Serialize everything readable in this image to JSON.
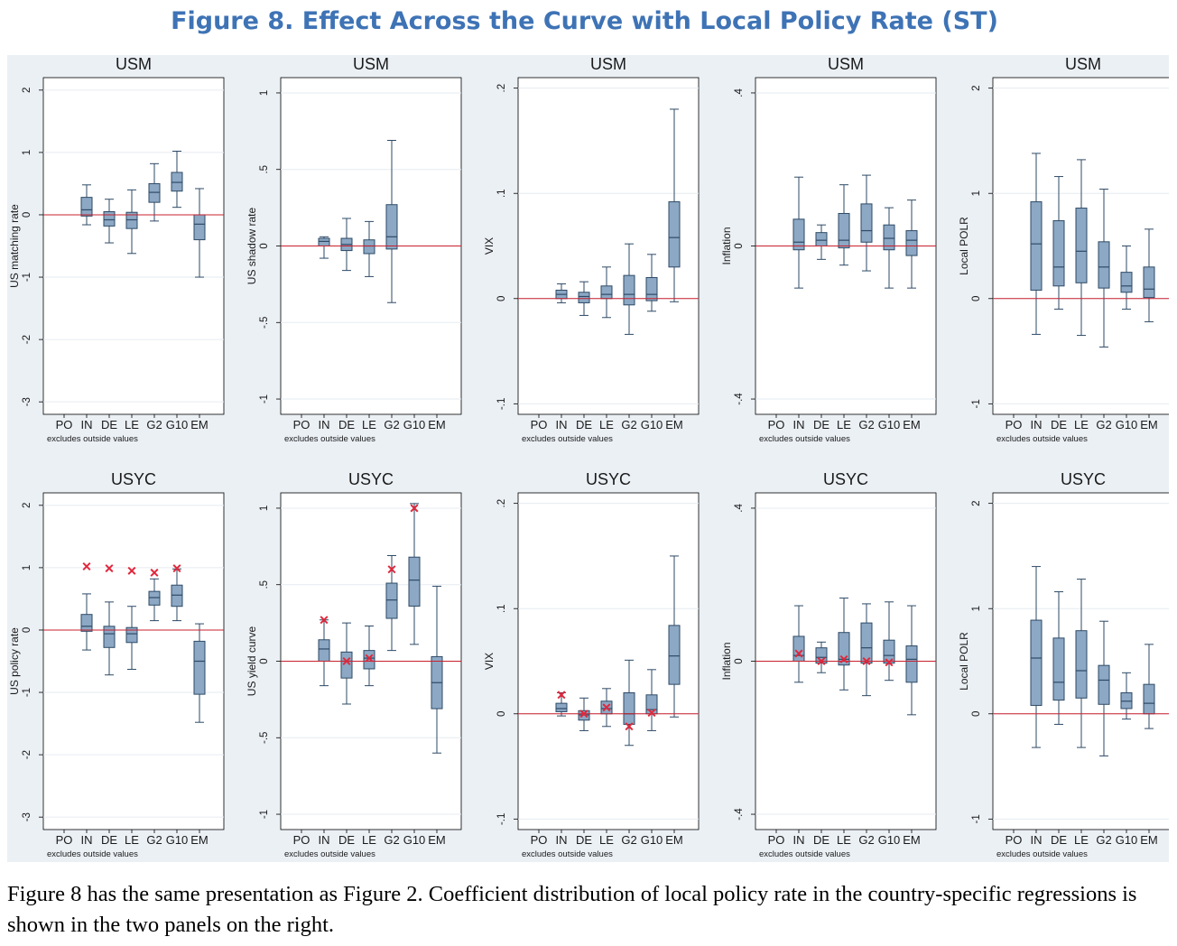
{
  "title": "Figure 8. Effect Across the Curve with Local Policy Rate (ST)",
  "caption": "Figure 8 has the same presentation as Figure 2. Coefficient distribution of local policy rate in the country-specific regressions is shown in the two panels on the right.",
  "colors": {
    "title": "#3e73b5",
    "panel_bg": "#ebf0f5",
    "plot_bg": "#ffffff",
    "box_fill": "#8ca8c4",
    "box_stroke": "#2e4a66",
    "zero_line": "#c8202e",
    "marker": "#e0283c"
  },
  "chart_data": [
    {
      "type": "box",
      "title": "USM",
      "ylabel": "US matching rate",
      "ylim": [
        -3.2,
        2.2
      ],
      "yticks": [
        {
          "v": 2,
          "label": "2"
        },
        {
          "v": 1,
          "label": "1"
        },
        {
          "v": 0,
          "label": "0"
        },
        {
          "v": -1,
          "label": "-1"
        },
        {
          "v": -2,
          "label": "-2"
        },
        {
          "v": -3,
          "label": "-3"
        }
      ],
      "categories": [
        "PO",
        "IN",
        "DE",
        "LE",
        "G2",
        "G10",
        "EM"
      ],
      "note": "excludes outside values",
      "boxes": [
        {
          "cat": "IN",
          "whislo": -0.16,
          "q1": -0.02,
          "med": 0.08,
          "q3": 0.28,
          "whishi": 0.48
        },
        {
          "cat": "DE",
          "whislo": -0.45,
          "q1": -0.18,
          "med": -0.08,
          "q3": 0.05,
          "whishi": 0.25
        },
        {
          "cat": "LE",
          "whislo": -0.62,
          "q1": -0.22,
          "med": -0.08,
          "q3": 0.04,
          "whishi": 0.4
        },
        {
          "cat": "G2",
          "whislo": -0.1,
          "q1": 0.2,
          "med": 0.36,
          "q3": 0.5,
          "whishi": 0.82
        },
        {
          "cat": "G10",
          "whislo": 0.12,
          "q1": 0.38,
          "med": 0.52,
          "q3": 0.68,
          "whishi": 1.02
        },
        {
          "cat": "EM",
          "whislo": -1.0,
          "q1": -0.4,
          "med": -0.15,
          "q3": 0.0,
          "whishi": 0.42
        }
      ],
      "markers": []
    },
    {
      "type": "box",
      "title": "USM",
      "ylabel": "US shadow rate",
      "ylim": [
        -1.1,
        1.1
      ],
      "yticks": [
        {
          "v": 1,
          "label": "1"
        },
        {
          "v": 0.5,
          "label": ".5"
        },
        {
          "v": 0,
          "label": "0"
        },
        {
          "v": -0.5,
          "label": "-.5"
        },
        {
          "v": -1,
          "label": "-1"
        }
      ],
      "categories": [
        "PO",
        "IN",
        "DE",
        "LE",
        "G2",
        "G10",
        "EM"
      ],
      "note": "excludes outside values",
      "boxes": [
        {
          "cat": "IN",
          "whislo": -0.08,
          "q1": 0.0,
          "med": 0.03,
          "q3": 0.05,
          "whishi": 0.06
        },
        {
          "cat": "DE",
          "whislo": -0.16,
          "q1": -0.03,
          "med": 0.01,
          "q3": 0.05,
          "whishi": 0.18
        },
        {
          "cat": "LE",
          "whislo": -0.2,
          "q1": -0.05,
          "med": 0.0,
          "q3": 0.04,
          "whishi": 0.16
        },
        {
          "cat": "G2",
          "whislo": -0.37,
          "q1": -0.02,
          "med": 0.06,
          "q3": 0.27,
          "whishi": 0.69
        }
      ],
      "markers": []
    },
    {
      "type": "box",
      "title": "USM",
      "ylabel": "VIX",
      "ylim": [
        -0.11,
        0.21
      ],
      "yticks": [
        {
          "v": 0.2,
          "label": ".2"
        },
        {
          "v": 0.1,
          "label": ".1"
        },
        {
          "v": 0,
          "label": "0"
        },
        {
          "v": -0.1,
          "label": "-.1"
        }
      ],
      "categories": [
        "PO",
        "IN",
        "DE",
        "LE",
        "G2",
        "G10",
        "EM"
      ],
      "note": "excludes outside values",
      "boxes": [
        {
          "cat": "IN",
          "whislo": -0.004,
          "q1": 0.0,
          "med": 0.004,
          "q3": 0.008,
          "whishi": 0.014
        },
        {
          "cat": "DE",
          "whislo": -0.016,
          "q1": -0.004,
          "med": 0.002,
          "q3": 0.006,
          "whishi": 0.016
        },
        {
          "cat": "LE",
          "whislo": -0.018,
          "q1": 0.0,
          "med": 0.004,
          "q3": 0.012,
          "whishi": 0.03
        },
        {
          "cat": "G2",
          "whislo": -0.034,
          "q1": -0.006,
          "med": 0.004,
          "q3": 0.022,
          "whishi": 0.052
        },
        {
          "cat": "G10",
          "whislo": -0.012,
          "q1": -0.002,
          "med": 0.004,
          "q3": 0.02,
          "whishi": 0.042
        },
        {
          "cat": "EM",
          "whislo": -0.003,
          "q1": 0.03,
          "med": 0.058,
          "q3": 0.092,
          "whishi": 0.18
        }
      ],
      "markers": []
    },
    {
      "type": "box",
      "title": "USM",
      "ylabel": "Inflation",
      "ylim": [
        -0.44,
        0.44
      ],
      "yticks": [
        {
          "v": 0.4,
          "label": ".4"
        },
        {
          "v": 0,
          "label": "0"
        },
        {
          "v": -0.4,
          "label": "-.4"
        }
      ],
      "categories": [
        "PO",
        "IN",
        "DE",
        "LE",
        "G2",
        "G10",
        "EM"
      ],
      "note": "excludes outside values",
      "boxes": [
        {
          "cat": "IN",
          "whislo": -0.11,
          "q1": -0.01,
          "med": 0.01,
          "q3": 0.07,
          "whishi": 0.18
        },
        {
          "cat": "DE",
          "whislo": -0.035,
          "q1": 0.0,
          "med": 0.015,
          "q3": 0.035,
          "whishi": 0.055
        },
        {
          "cat": "LE",
          "whislo": -0.05,
          "q1": -0.005,
          "med": 0.015,
          "q3": 0.085,
          "whishi": 0.16
        },
        {
          "cat": "G2",
          "whislo": -0.065,
          "q1": 0.01,
          "med": 0.04,
          "q3": 0.11,
          "whishi": 0.185
        },
        {
          "cat": "G10",
          "whislo": -0.11,
          "q1": -0.01,
          "med": 0.02,
          "q3": 0.055,
          "whishi": 0.1
        },
        {
          "cat": "EM",
          "whislo": -0.11,
          "q1": -0.025,
          "med": 0.015,
          "q3": 0.04,
          "whishi": 0.12
        }
      ],
      "markers": []
    },
    {
      "type": "box",
      "title": "USM",
      "ylabel": "Local POLR",
      "ylim": [
        -1.1,
        2.1
      ],
      "yticks": [
        {
          "v": 2,
          "label": "2"
        },
        {
          "v": 1,
          "label": "1"
        },
        {
          "v": 0,
          "label": "0"
        },
        {
          "v": -1,
          "label": "-1"
        }
      ],
      "categories": [
        "PO",
        "IN",
        "DE",
        "LE",
        "G2",
        "G10",
        "EM"
      ],
      "note": "excludes outside values",
      "boxes": [
        {
          "cat": "IN",
          "whislo": -0.34,
          "q1": 0.08,
          "med": 0.52,
          "q3": 0.92,
          "whishi": 1.38
        },
        {
          "cat": "DE",
          "whislo": -0.1,
          "q1": 0.12,
          "med": 0.3,
          "q3": 0.74,
          "whishi": 1.16
        },
        {
          "cat": "LE",
          "whislo": -0.35,
          "q1": 0.15,
          "med": 0.45,
          "q3": 0.86,
          "whishi": 1.32
        },
        {
          "cat": "G2",
          "whislo": -0.46,
          "q1": 0.1,
          "med": 0.3,
          "q3": 0.54,
          "whishi": 1.04
        },
        {
          "cat": "G10",
          "whislo": -0.1,
          "q1": 0.06,
          "med": 0.12,
          "q3": 0.25,
          "whishi": 0.5
        },
        {
          "cat": "EM",
          "whislo": -0.22,
          "q1": 0.01,
          "med": 0.09,
          "q3": 0.3,
          "whishi": 0.66
        }
      ],
      "markers": []
    },
    {
      "type": "box",
      "title": "USYC",
      "ylabel": "US policy rate",
      "ylim": [
        -3.2,
        2.2
      ],
      "yticks": [
        {
          "v": 2,
          "label": "2"
        },
        {
          "v": 1,
          "label": "1"
        },
        {
          "v": 0,
          "label": "0"
        },
        {
          "v": -1,
          "label": "-1"
        },
        {
          "v": -2,
          "label": "-2"
        },
        {
          "v": -3,
          "label": "-3"
        }
      ],
      "categories": [
        "PO",
        "IN",
        "DE",
        "LE",
        "G2",
        "G10",
        "EM"
      ],
      "note": "excludes outside values",
      "boxes": [
        {
          "cat": "IN",
          "whislo": -0.32,
          "q1": -0.02,
          "med": 0.06,
          "q3": 0.25,
          "whishi": 0.58
        },
        {
          "cat": "DE",
          "whislo": -0.72,
          "q1": -0.28,
          "med": -0.06,
          "q3": 0.06,
          "whishi": 0.45
        },
        {
          "cat": "LE",
          "whislo": -0.63,
          "q1": -0.2,
          "med": -0.06,
          "q3": 0.04,
          "whishi": 0.38
        },
        {
          "cat": "G2",
          "whislo": 0.15,
          "q1": 0.4,
          "med": 0.52,
          "q3": 0.62,
          "whishi": 0.82
        },
        {
          "cat": "G10",
          "whislo": 0.15,
          "q1": 0.38,
          "med": 0.56,
          "q3": 0.72,
          "whishi": 0.98
        },
        {
          "cat": "EM",
          "whislo": -1.48,
          "q1": -1.03,
          "med": -0.5,
          "q3": -0.18,
          "whishi": 0.1
        }
      ],
      "markers": [
        {
          "cat": "IN",
          "v": 1.02
        },
        {
          "cat": "DE",
          "v": 0.99
        },
        {
          "cat": "LE",
          "v": 0.95
        },
        {
          "cat": "G2",
          "v": 0.92
        },
        {
          "cat": "G10",
          "v": 0.99
        }
      ]
    },
    {
      "type": "box",
      "title": "USYC",
      "ylabel": "US yield curve",
      "ylim": [
        -1.1,
        1.1
      ],
      "yticks": [
        {
          "v": 1,
          "label": "1"
        },
        {
          "v": 0.5,
          "label": ".5"
        },
        {
          "v": 0,
          "label": "0"
        },
        {
          "v": -0.5,
          "label": "-.5"
        },
        {
          "v": -1,
          "label": "-1"
        }
      ],
      "categories": [
        "PO",
        "IN",
        "DE",
        "LE",
        "G2",
        "G10",
        "EM"
      ],
      "note": "excludes outside values",
      "boxes": [
        {
          "cat": "IN",
          "whislo": -0.16,
          "q1": 0.0,
          "med": 0.08,
          "q3": 0.14,
          "whishi": 0.27
        },
        {
          "cat": "DE",
          "whislo": -0.28,
          "q1": -0.11,
          "med": 0.0,
          "q3": 0.06,
          "whishi": 0.25
        },
        {
          "cat": "LE",
          "whislo": -0.16,
          "q1": -0.05,
          "med": 0.02,
          "q3": 0.07,
          "whishi": 0.23
        },
        {
          "cat": "G2",
          "whislo": 0.07,
          "q1": 0.28,
          "med": 0.4,
          "q3": 0.51,
          "whishi": 0.69
        },
        {
          "cat": "G10",
          "whislo": 0.11,
          "q1": 0.36,
          "med": 0.53,
          "q3": 0.68,
          "whishi": 1.03
        },
        {
          "cat": "EM",
          "whislo": -0.6,
          "q1": -0.31,
          "med": -0.14,
          "q3": 0.03,
          "whishi": 0.49
        }
      ],
      "markers": [
        {
          "cat": "IN",
          "v": 0.27
        },
        {
          "cat": "DE",
          "v": 0.0
        },
        {
          "cat": "LE",
          "v": 0.02
        },
        {
          "cat": "G2",
          "v": 0.6
        },
        {
          "cat": "G10",
          "v": 1.0
        }
      ]
    },
    {
      "type": "box",
      "title": "USYC",
      "ylabel": "VIX",
      "ylim": [
        -0.11,
        0.21
      ],
      "yticks": [
        {
          "v": 0.2,
          "label": ".2"
        },
        {
          "v": 0.1,
          "label": ".1"
        },
        {
          "v": 0,
          "label": "0"
        },
        {
          "v": -0.1,
          "label": "-.1"
        }
      ],
      "categories": [
        "PO",
        "IN",
        "DE",
        "LE",
        "G2",
        "G10",
        "EM"
      ],
      "note": "excludes outside values",
      "boxes": [
        {
          "cat": "IN",
          "whislo": -0.002,
          "q1": 0.002,
          "med": 0.005,
          "q3": 0.01,
          "whishi": 0.02
        },
        {
          "cat": "DE",
          "whislo": -0.016,
          "q1": -0.006,
          "med": -0.001,
          "q3": 0.003,
          "whishi": 0.015
        },
        {
          "cat": "LE",
          "whislo": -0.012,
          "q1": 0.0,
          "med": 0.005,
          "q3": 0.012,
          "whishi": 0.024
        },
        {
          "cat": "G2",
          "whislo": -0.03,
          "q1": -0.01,
          "med": 0.0,
          "q3": 0.02,
          "whishi": 0.051
        },
        {
          "cat": "G10",
          "whislo": -0.016,
          "q1": 0.0,
          "med": 0.004,
          "q3": 0.018,
          "whishi": 0.042
        },
        {
          "cat": "EM",
          "whislo": -0.003,
          "q1": 0.028,
          "med": 0.055,
          "q3": 0.084,
          "whishi": 0.15
        }
      ],
      "markers": [
        {
          "cat": "IN",
          "v": 0.018
        },
        {
          "cat": "DE",
          "v": 0.0
        },
        {
          "cat": "LE",
          "v": 0.006
        },
        {
          "cat": "G2",
          "v": -0.012
        },
        {
          "cat": "G10",
          "v": 0.001
        }
      ]
    },
    {
      "type": "box",
      "title": "USYC",
      "ylabel": "Inflation",
      "ylim": [
        -0.44,
        0.44
      ],
      "yticks": [
        {
          "v": 0.4,
          "label": ".4"
        },
        {
          "v": 0,
          "label": "0"
        },
        {
          "v": -0.4,
          "label": "-.4"
        }
      ],
      "categories": [
        "PO",
        "IN",
        "DE",
        "LE",
        "G2",
        "G10",
        "EM"
      ],
      "note": "excludes outside values",
      "boxes": [
        {
          "cat": "IN",
          "whislo": -0.055,
          "q1": 0.0,
          "med": 0.015,
          "q3": 0.065,
          "whishi": 0.145
        },
        {
          "cat": "DE",
          "whislo": -0.03,
          "q1": -0.005,
          "med": 0.01,
          "q3": 0.035,
          "whishi": 0.05
        },
        {
          "cat": "LE",
          "whislo": -0.075,
          "q1": -0.01,
          "med": 0.005,
          "q3": 0.075,
          "whishi": 0.165
        },
        {
          "cat": "G2",
          "whislo": -0.09,
          "q1": -0.005,
          "med": 0.035,
          "q3": 0.1,
          "whishi": 0.15
        },
        {
          "cat": "G10",
          "whislo": -0.05,
          "q1": -0.005,
          "med": 0.015,
          "q3": 0.055,
          "whishi": 0.155
        },
        {
          "cat": "EM",
          "whislo": -0.14,
          "q1": -0.055,
          "med": 0.005,
          "q3": 0.04,
          "whishi": 0.145
        }
      ],
      "markers": [
        {
          "cat": "IN",
          "v": 0.02
        },
        {
          "cat": "DE",
          "v": 0.0
        },
        {
          "cat": "LE",
          "v": 0.005
        },
        {
          "cat": "G2",
          "v": 0.0
        },
        {
          "cat": "G10",
          "v": -0.003
        }
      ]
    },
    {
      "type": "box",
      "title": "USYC",
      "ylabel": "Local POLR",
      "ylim": [
        -1.1,
        2.1
      ],
      "yticks": [
        {
          "v": 2,
          "label": "2"
        },
        {
          "v": 1,
          "label": "1"
        },
        {
          "v": 0,
          "label": "0"
        },
        {
          "v": -1,
          "label": "-1"
        }
      ],
      "categories": [
        "PO",
        "IN",
        "DE",
        "LE",
        "G2",
        "G10",
        "EM"
      ],
      "note": "excludes outside values",
      "boxes": [
        {
          "cat": "IN",
          "whislo": -0.32,
          "q1": 0.08,
          "med": 0.53,
          "q3": 0.89,
          "whishi": 1.4
        },
        {
          "cat": "DE",
          "whislo": -0.1,
          "q1": 0.13,
          "med": 0.3,
          "q3": 0.72,
          "whishi": 1.16
        },
        {
          "cat": "LE",
          "whislo": -0.32,
          "q1": 0.15,
          "med": 0.41,
          "q3": 0.79,
          "whishi": 1.28
        },
        {
          "cat": "G2",
          "whislo": -0.4,
          "q1": 0.09,
          "med": 0.32,
          "q3": 0.46,
          "whishi": 0.88
        },
        {
          "cat": "G10",
          "whislo": -0.05,
          "q1": 0.05,
          "med": 0.12,
          "q3": 0.2,
          "whishi": 0.39
        },
        {
          "cat": "EM",
          "whislo": -0.14,
          "q1": 0.0,
          "med": 0.1,
          "q3": 0.28,
          "whishi": 0.66
        }
      ],
      "markers": []
    }
  ]
}
